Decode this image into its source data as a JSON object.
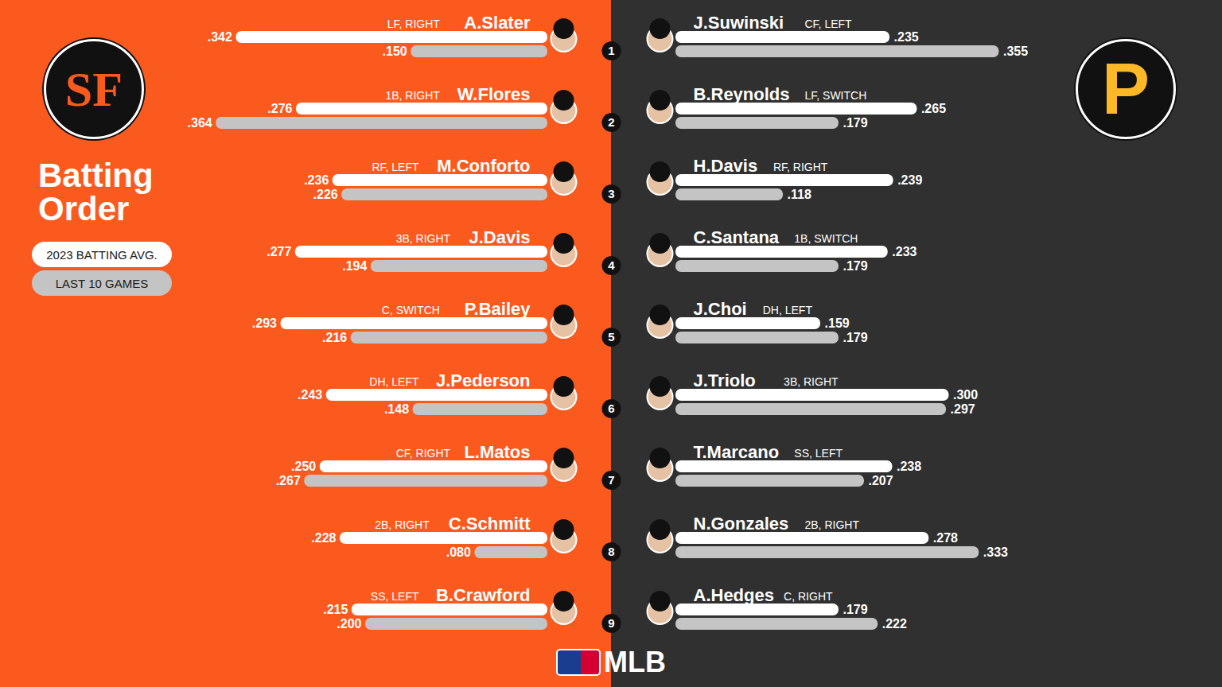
{
  "chart_data": [
    {
      "type": "bar",
      "orientation": "horizontal",
      "title": "Batting Order",
      "legend": "left",
      "team_logo": "SF",
      "categories": [
        "A.Slater",
        "W.Flores",
        "M.Conforto",
        "J.Davis",
        "P.Bailey",
        "J.Pederson",
        "L.Matos",
        "C.Schmitt",
        "B.Crawford"
      ],
      "positions": [
        "LF, RIGHT",
        "1B, RIGHT",
        "RF, LEFT",
        "3B, RIGHT",
        "C, SWITCH",
        "DH, LEFT",
        "CF, RIGHT",
        "2B, RIGHT",
        "SS, LEFT"
      ],
      "batting_order": [
        1,
        2,
        3,
        4,
        5,
        6,
        7,
        8,
        9
      ],
      "series": [
        {
          "name": "2023 BATTING AVG.",
          "color": "#ffffff",
          "values": [
            0.342,
            0.276,
            0.236,
            0.277,
            0.293,
            0.243,
            0.25,
            0.228,
            0.215
          ],
          "value_labels": [
            ".342",
            ".276",
            ".236",
            ".277",
            ".293",
            ".243",
            ".250",
            ".228",
            ".215"
          ]
        },
        {
          "name": "LAST 10 GAMES",
          "color": "#c4c4c4",
          "values": [
            0.15,
            0.364,
            0.226,
            0.194,
            0.216,
            0.148,
            0.267,
            0.08,
            0.2
          ],
          "value_labels": [
            ".150",
            ".364",
            ".226",
            ".194",
            ".216",
            ".148",
            ".267",
            ".080",
            ".200"
          ]
        }
      ],
      "xlim": [
        0,
        0.4
      ],
      "data_labels": true,
      "tick_labels": false
    },
    {
      "type": "bar",
      "orientation": "horizontal",
      "team_logo": "P",
      "caption": "MLB",
      "categories": [
        "J.Suwinski",
        "B.Reynolds",
        "H.Davis",
        "C.Santana",
        "J.Choi",
        "J.Triolo",
        "T.Marcano",
        "N.Gonzales",
        "A.Hedges"
      ],
      "positions": [
        "CF, LEFT",
        "LF, SWITCH",
        "RF, RIGHT",
        "1B, SWITCH",
        "DH, LEFT",
        "3B, RIGHT",
        "SS, LEFT",
        "2B, RIGHT",
        "C, RIGHT"
      ],
      "series": [
        {
          "name": "2023 BATTING AVG.",
          "color": "#ffffff",
          "values": [
            0.235,
            0.265,
            0.239,
            0.233,
            0.159,
            0.3,
            0.238,
            0.278,
            0.179
          ],
          "value_labels": [
            ".235",
            ".265",
            ".239",
            ".233",
            ".159",
            ".300",
            ".238",
            ".278",
            ".179"
          ]
        },
        {
          "name": "LAST 10 GAMES",
          "color": "#c4c4c4",
          "values": [
            0.355,
            0.179,
            0.118,
            0.179,
            0.179,
            0.297,
            0.207,
            0.333,
            0.222
          ],
          "value_labels": [
            ".355",
            ".179",
            ".118",
            ".179",
            ".179",
            ".297",
            ".207",
            ".333",
            ".222"
          ]
        }
      ],
      "xlim": [
        0,
        0.4
      ],
      "data_labels": true,
      "tick_labels": false
    }
  ]
}
